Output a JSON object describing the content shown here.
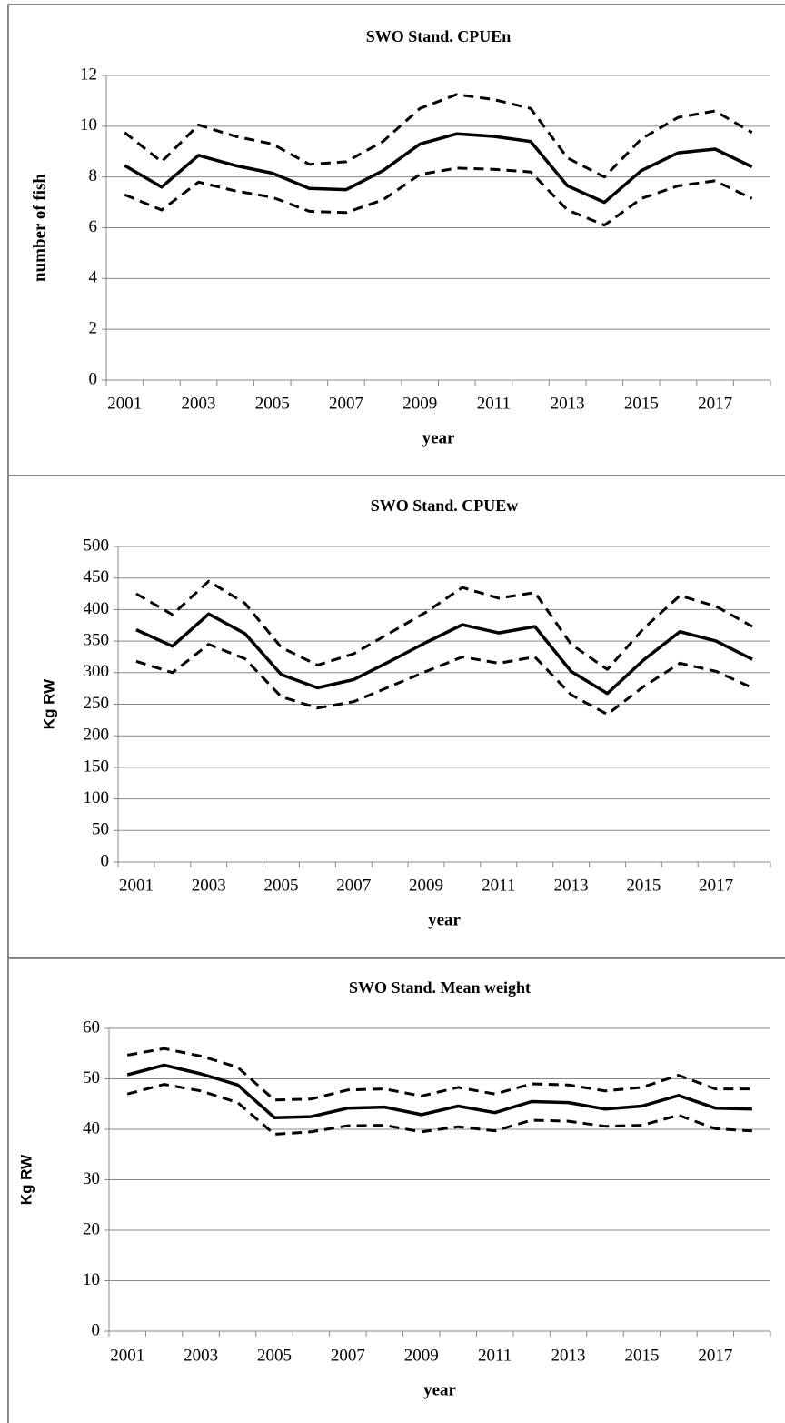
{
  "chart_data": [
    {
      "type": "line",
      "title": "SWO Stand. CPUEn",
      "x_label": "year",
      "y_label": "number of fish",
      "categories": [
        "2001",
        null,
        "2003",
        null,
        "2005",
        null,
        "2007",
        null,
        "2009",
        null,
        "2011",
        null,
        "2013",
        null,
        "2015",
        null,
        "2017",
        null
      ],
      "series": [
        {
          "color": "#000000",
          "dash": false,
          "values": [
            8.45,
            7.6,
            8.85,
            8.45,
            8.15,
            7.55,
            7.5,
            8.25,
            9.3,
            9.7,
            9.6,
            9.4,
            7.65,
            7.0,
            8.25,
            8.95,
            9.1,
            8.4
          ]
        },
        {
          "color": "#000000",
          "dash": true,
          "values": [
            9.75,
            8.6,
            10.05,
            9.6,
            9.3,
            8.5,
            8.6,
            9.4,
            10.7,
            11.25,
            11.05,
            10.7,
            8.75,
            8.0,
            9.5,
            10.35,
            10.6,
            9.75
          ]
        },
        {
          "color": "#000000",
          "dash": true,
          "values": [
            7.3,
            6.7,
            7.8,
            7.45,
            7.2,
            6.65,
            6.6,
            7.1,
            8.1,
            8.35,
            8.3,
            8.2,
            6.7,
            6.1,
            7.15,
            7.65,
            7.85,
            7.15
          ]
        }
      ],
      "ylim": [
        0,
        12
      ],
      "yticks": [
        0,
        2,
        4,
        6,
        8,
        10,
        12
      ],
      "grid": true
    },
    {
      "type": "line",
      "title": "SWO Stand. CPUEw",
      "x_label": "year",
      "y_label": "Kg RW",
      "categories": [
        "2001",
        null,
        "2003",
        null,
        "2005",
        null,
        "2007",
        null,
        "2009",
        null,
        "2011",
        null,
        "2013",
        null,
        "2015",
        null,
        "2017",
        null
      ],
      "series": [
        {
          "color": "#000000",
          "dash": false,
          "values": [
            368,
            342,
            393,
            362,
            297,
            276,
            289,
            318,
            348,
            376,
            363,
            373,
            302,
            267,
            320,
            365,
            350,
            321
          ]
        },
        {
          "color": "#000000",
          "dash": true,
          "values": [
            425,
            392,
            445,
            410,
            340,
            312,
            330,
            363,
            396,
            435,
            418,
            427,
            345,
            305,
            370,
            422,
            405,
            373
          ]
        },
        {
          "color": "#000000",
          "dash": true,
          "values": [
            318,
            300,
            345,
            322,
            262,
            244,
            254,
            278,
            302,
            325,
            315,
            325,
            265,
            234,
            278,
            315,
            302,
            276
          ]
        }
      ],
      "ylim": [
        0,
        500
      ],
      "yticks": [
        0,
        50,
        100,
        150,
        200,
        250,
        300,
        350,
        400,
        450,
        500
      ],
      "grid": true
    },
    {
      "type": "line",
      "title": "SWO Stand. Mean weight",
      "x_label": "year",
      "y_label": "Kg RW",
      "categories": [
        "2001",
        null,
        "2003",
        null,
        "2005",
        null,
        "2007",
        null,
        "2009",
        null,
        "2011",
        null,
        "2013",
        null,
        "2015",
        null,
        "2017",
        null
      ],
      "series": [
        {
          "color": "#000000",
          "dash": false,
          "values": [
            50.8,
            52.7,
            51.0,
            48.8,
            42.3,
            42.5,
            44.2,
            44.4,
            42.9,
            44.6,
            43.3,
            45.5,
            45.3,
            44.0,
            44.6,
            46.7,
            44.2,
            44.0
          ]
        },
        {
          "color": "#000000",
          "dash": true,
          "values": [
            54.7,
            56.0,
            54.5,
            52.3,
            45.8,
            46.0,
            47.8,
            48.0,
            46.6,
            48.3,
            47.0,
            49.0,
            48.8,
            47.6,
            48.3,
            50.7,
            48.0,
            48.0
          ]
        },
        {
          "color": "#000000",
          "dash": true,
          "values": [
            47.0,
            48.9,
            47.6,
            45.3,
            39.0,
            39.5,
            40.7,
            40.8,
            39.5,
            40.5,
            39.7,
            41.8,
            41.6,
            40.6,
            40.8,
            42.8,
            40.1,
            39.7
          ]
        }
      ],
      "ylim": [
        0,
        60
      ],
      "yticks": [
        0,
        10,
        20,
        30,
        40,
        50,
        60
      ],
      "grid": true
    }
  ]
}
